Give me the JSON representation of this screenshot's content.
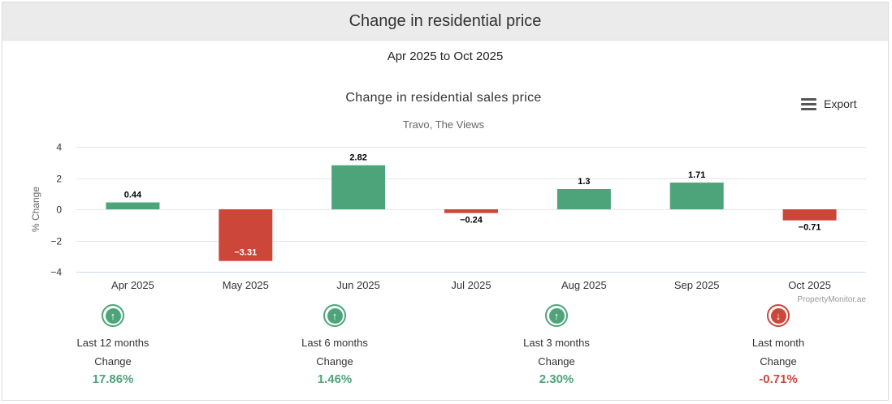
{
  "header": {
    "title": "Change in residential price"
  },
  "date_range": "Apr 2025 to Oct 2025",
  "export_label": "Export",
  "chart_data": {
    "type": "bar",
    "title": "Change in residential sales price",
    "subtitle": "Travo, The Views",
    "xlabel": "",
    "ylabel": "% Change",
    "categories": [
      "Apr 2025",
      "May 2025",
      "Jun 2025",
      "Jul 2025",
      "Aug 2025",
      "Sep 2025",
      "Oct 2025"
    ],
    "values": [
      0.44,
      -3.31,
      2.82,
      -0.24,
      1.3,
      1.71,
      -0.71
    ],
    "value_labels": [
      "0.44",
      "−3.31",
      "2.82",
      "−0.24",
      "1.3",
      "1.71",
      "−0.71"
    ],
    "ylim": [
      -4,
      4
    ],
    "yticks": [
      4,
      2,
      0,
      -2,
      -4
    ],
    "ytick_labels": [
      "4",
      "2",
      "0",
      "−2",
      "−4"
    ],
    "grid": true,
    "legend": "none",
    "credit": "PropertyMonitor.ae",
    "colors": {
      "positive": "#4ea47a",
      "negative": "#cd463a"
    }
  },
  "stats": [
    {
      "period": "Last 12 months",
      "label": "Change",
      "value": "17.86%",
      "direction": "up",
      "icon": "arrow-up-circle-icon"
    },
    {
      "period": "Last 6 months",
      "label": "Change",
      "value": "1.46%",
      "direction": "up",
      "icon": "arrow-up-circle-icon"
    },
    {
      "period": "Last 3 months",
      "label": "Change",
      "value": "2.30%",
      "direction": "up",
      "icon": "arrow-up-circle-icon"
    },
    {
      "period": "Last month",
      "label": "Change",
      "value": "-0.71%",
      "direction": "down",
      "icon": "arrow-down-circle-icon"
    }
  ]
}
